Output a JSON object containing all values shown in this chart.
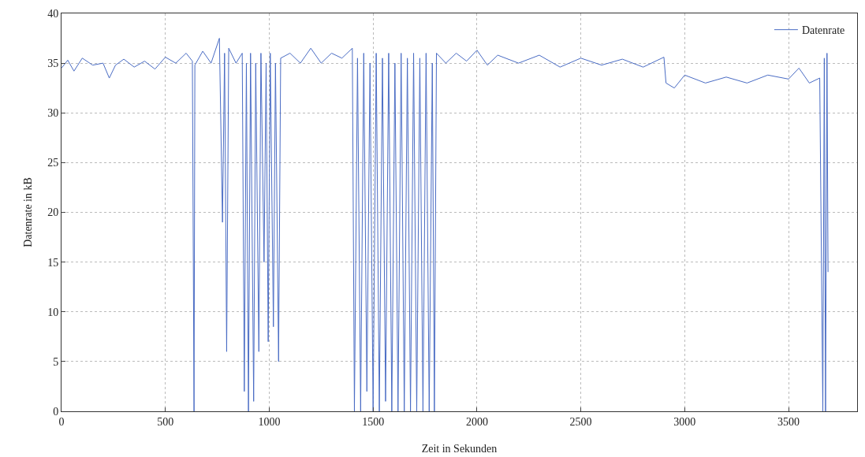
{
  "chart_data": {
    "type": "line",
    "xlabel": "Zeit in Sekunden",
    "ylabel": "Datenrate in kB",
    "xlim": [
      0,
      3830
    ],
    "xticks": [
      0,
      500,
      1000,
      1500,
      2000,
      2500,
      3000,
      3500
    ],
    "ylim": [
      0,
      40
    ],
    "yticks": [
      0,
      5,
      10,
      15,
      20,
      25,
      30,
      35,
      40
    ],
    "grid": true,
    "legend": "top right",
    "marker": "none",
    "line_style": "solid",
    "series": [
      {
        "name": "Datenrate",
        "color": "#4a6cc4",
        "x": [
          0,
          30,
          60,
          100,
          150,
          200,
          230,
          260,
          300,
          350,
          400,
          450,
          500,
          550,
          600,
          630,
          638,
          642,
          680,
          720,
          760,
          775,
          785,
          795,
          805,
          840,
          870,
          880,
          890,
          900,
          910,
          925,
          935,
          950,
          960,
          975,
          985,
          995,
          1005,
          1020,
          1030,
          1045,
          1055,
          1100,
          1150,
          1200,
          1250,
          1300,
          1350,
          1400,
          1410,
          1425,
          1440,
          1455,
          1470,
          1485,
          1500,
          1515,
          1530,
          1545,
          1560,
          1575,
          1590,
          1605,
          1620,
          1635,
          1650,
          1665,
          1680,
          1695,
          1710,
          1725,
          1740,
          1755,
          1770,
          1785,
          1795,
          1805,
          1850,
          1900,
          1950,
          2000,
          2050,
          2100,
          2200,
          2300,
          2400,
          2500,
          2600,
          2700,
          2800,
          2900,
          2910,
          2950,
          3000,
          3100,
          3200,
          3300,
          3400,
          3500,
          3550,
          3600,
          3650,
          3665,
          3672,
          3678,
          3685,
          3690
        ],
        "values": [
          34.5,
          35.3,
          34.2,
          35.5,
          34.8,
          35.0,
          33.5,
          34.8,
          35.4,
          34.6,
          35.2,
          34.4,
          35.6,
          35.0,
          36.0,
          35.2,
          0,
          34.8,
          36.2,
          35.0,
          37.5,
          19,
          36,
          6,
          36.5,
          35,
          36,
          2,
          35,
          0,
          36,
          1,
          35,
          6,
          36,
          15,
          35,
          7,
          36,
          8.5,
          35,
          5,
          35.5,
          36,
          35,
          36.5,
          35,
          36,
          35.5,
          36.5,
          0,
          35.5,
          0,
          36,
          2,
          35,
          0,
          36,
          0,
          35.5,
          1,
          36,
          0,
          35,
          0,
          36,
          0,
          35.5,
          0,
          36,
          0,
          35.5,
          0,
          36,
          0,
          35,
          0,
          36,
          35,
          36,
          35.2,
          36.3,
          34.8,
          35.8,
          35,
          35.8,
          34.6,
          35.5,
          34.8,
          35.4,
          34.6,
          35.6,
          33,
          32.5,
          33.8,
          33,
          33.6,
          33,
          33.8,
          33.4,
          34.5,
          33,
          33.5,
          0,
          35.5,
          0,
          36,
          14
        ]
      }
    ]
  }
}
